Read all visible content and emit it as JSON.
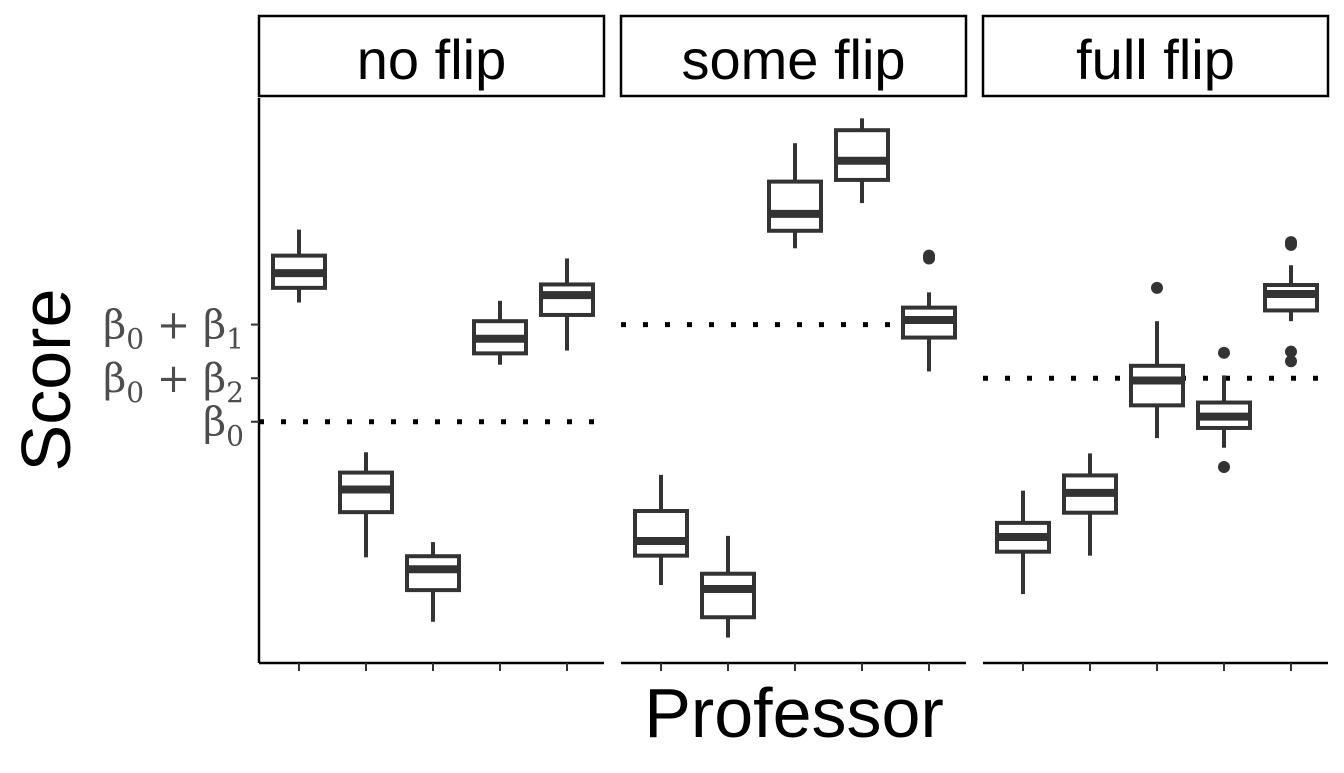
{
  "chart_data": {
    "type": "boxplot",
    "xlabel": "Professor",
    "ylabel": "Score",
    "ylim": [
      0,
      100
    ],
    "grid": false,
    "legend": "none",
    "y_tick_labels": [
      {
        "label": "β0 + β1",
        "main": "β",
        "sub1": "0",
        "plus": " + ",
        "main2": "β",
        "sub2": "1",
        "value": 59.9
      },
      {
        "label": "β0 + β2",
        "main": "β",
        "sub1": "0",
        "plus": " + ",
        "main2": "β",
        "sub2": "2",
        "value": 50.4
      },
      {
        "label": "β0",
        "main": "β",
        "sub1": "0",
        "value": 42.7
      }
    ],
    "panels": [
      {
        "strip": "no flip",
        "reference_line": "β0",
        "reference_value": 42.7,
        "boxes": [
          {
            "professor": 1,
            "whislo": 63.8,
            "q1": 66.4,
            "median": 69.0,
            "q3": 72.1,
            "whishi": 76.7,
            "outliers": []
          },
          {
            "professor": 2,
            "whislo": 18.7,
            "q1": 26.7,
            "median": 30.7,
            "q3": 33.7,
            "whishi": 37.3,
            "outliers": []
          },
          {
            "professor": 3,
            "whislo": 7.3,
            "q1": 12.9,
            "median": 16.6,
            "q3": 18.9,
            "whishi": 21.4,
            "outliers": []
          },
          {
            "professor": 4,
            "whislo": 52.8,
            "q1": 54.8,
            "median": 57.4,
            "q3": 60.5,
            "whishi": 64.1,
            "outliers": []
          },
          {
            "professor": 5,
            "whislo": 55.3,
            "q1": 61.6,
            "median": 65.1,
            "q3": 67.0,
            "whishi": 71.6,
            "outliers": []
          }
        ]
      },
      {
        "strip": "some flip",
        "reference_line": "β0 + β1",
        "reference_value": 59.9,
        "boxes": [
          {
            "professor": 1,
            "whislo": 13.8,
            "q1": 19.0,
            "median": 21.6,
            "q3": 26.9,
            "whishi": 33.3,
            "outliers": []
          },
          {
            "professor": 2,
            "whislo": 4.5,
            "q1": 8.1,
            "median": 13.1,
            "q3": 15.8,
            "whishi": 22.5,
            "outliers": []
          },
          {
            "professor": 3,
            "whislo": 73.4,
            "q1": 76.5,
            "median": 79.5,
            "q3": 85.2,
            "whishi": 92.0,
            "outliers": []
          },
          {
            "professor": 4,
            "whislo": 81.4,
            "q1": 85.5,
            "median": 88.9,
            "q3": 94.3,
            "whishi": 96.4,
            "outliers": []
          },
          {
            "professor": 5,
            "whislo": 51.6,
            "q1": 57.6,
            "median": 60.7,
            "q3": 62.9,
            "whishi": 65.6,
            "outliers": [
              71.6,
              72.1
            ]
          }
        ]
      },
      {
        "strip": "full flip",
        "reference_line": "β0 + β2",
        "reference_value": 50.4,
        "boxes": [
          {
            "professor": 1,
            "whislo": 12.2,
            "q1": 19.7,
            "median": 22.3,
            "q3": 24.8,
            "whishi": 30.5,
            "outliers": []
          },
          {
            "professor": 2,
            "whislo": 19.0,
            "q1": 26.6,
            "median": 30.1,
            "q3": 33.2,
            "whishi": 37.1,
            "outliers": []
          },
          {
            "professor": 3,
            "whislo": 39.8,
            "q1": 45.6,
            "median": 50.0,
            "q3": 52.6,
            "whishi": 60.5,
            "outliers": [
              66.4
            ]
          },
          {
            "professor": 4,
            "whislo": 38.1,
            "q1": 41.6,
            "median": 43.6,
            "q3": 46.1,
            "whishi": 50.9,
            "outliers": [
              34.7,
              54.9
            ]
          },
          {
            "professor": 5,
            "whislo": 60.5,
            "q1": 62.4,
            "median": 65.3,
            "q3": 66.9,
            "whishi": 70.4,
            "outliers": [
              74.0,
              74.5,
              55.1,
              53.4
            ]
          }
        ]
      }
    ]
  }
}
